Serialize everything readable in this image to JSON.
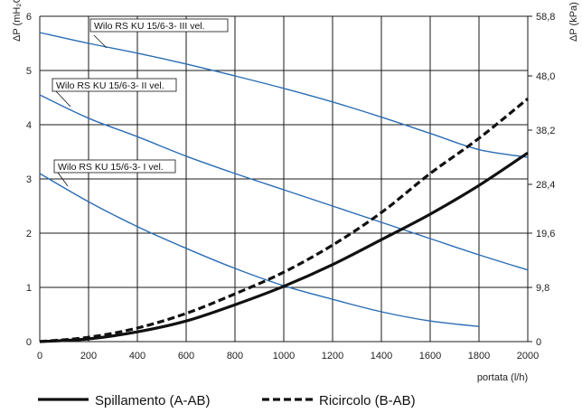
{
  "chart_data": {
    "type": "line",
    "x_label": "portata (l/h)",
    "y_label_left": "ΔP (mH₂O)",
    "y_label_right": "ΔP (kPa)",
    "xlim": [
      0,
      2000
    ],
    "ylim_left": [
      0,
      6
    ],
    "x_ticks": [
      0,
      200,
      400,
      600,
      800,
      1000,
      1200,
      1400,
      1600,
      1800,
      2000
    ],
    "y_ticks_left": [
      0,
      1,
      2,
      3,
      4,
      5,
      6
    ],
    "y_ticks_right": [
      {
        "value": 0,
        "label": "0"
      },
      {
        "value": 1,
        "label": "9,8"
      },
      {
        "value": 2,
        "label": "19,6"
      },
      {
        "value": 2.9,
        "label": "28,4"
      },
      {
        "value": 3.9,
        "label": "38,2"
      },
      {
        "value": 4.9,
        "label": "48,0"
      },
      {
        "value": 6,
        "label": "58,8"
      }
    ],
    "grid": true,
    "pump_curves": [
      {
        "name": "Wilo RS KU 15/6-3- III vel.",
        "color": "#2a6db5",
        "x": [
          0,
          200,
          400,
          600,
          800,
          1000,
          1200,
          1400,
          1600,
          1800,
          2000
        ],
        "y": [
          5.7,
          5.5,
          5.32,
          5.12,
          4.9,
          4.67,
          4.42,
          4.14,
          3.84,
          3.54,
          3.4
        ]
      },
      {
        "name": "Wilo RS KU 15/6-3- II vel.",
        "color": "#2a6db5",
        "x": [
          0,
          200,
          400,
          600,
          800,
          1000,
          1200,
          1400,
          1600,
          1800,
          2000
        ],
        "y": [
          4.55,
          4.12,
          3.78,
          3.42,
          3.1,
          2.8,
          2.5,
          2.2,
          1.9,
          1.6,
          1.32
        ]
      },
      {
        "name": "Wilo RS KU 15/6-3- I vel.",
        "color": "#2a6db5",
        "x": [
          0,
          200,
          400,
          600,
          800,
          1000,
          1200,
          1400,
          1600,
          1800
        ],
        "y": [
          3.1,
          2.58,
          2.12,
          1.72,
          1.35,
          1.03,
          0.78,
          0.55,
          0.38,
          0.28
        ]
      }
    ],
    "series": [
      {
        "name": "Spillamento (A-AB)",
        "style": "solid",
        "color": "#111111",
        "x": [
          0,
          200,
          400,
          600,
          800,
          1000,
          1200,
          1400,
          1600,
          1800,
          2000
        ],
        "y": [
          0,
          0.05,
          0.18,
          0.38,
          0.68,
          1.02,
          1.42,
          1.88,
          2.35,
          2.88,
          3.48
        ]
      },
      {
        "name": "Ricircolo (B-AB)",
        "style": "dashed",
        "color": "#111111",
        "x": [
          0,
          200,
          400,
          600,
          800,
          1000,
          1200,
          1400,
          1600,
          1800,
          2000
        ],
        "y": [
          0,
          0.08,
          0.25,
          0.52,
          0.88,
          1.28,
          1.78,
          2.38,
          3.1,
          3.75,
          4.48
        ]
      }
    ]
  }
}
